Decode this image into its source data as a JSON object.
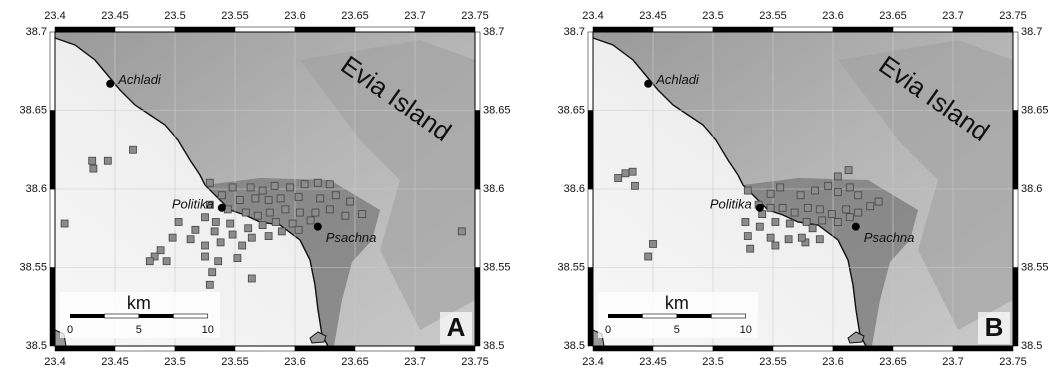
{
  "map": {
    "lonlim": [
      23.4,
      23.75
    ],
    "latlim": [
      38.5,
      38.7
    ],
    "lonticks": [
      23.4,
      23.45,
      23.5,
      23.55,
      23.6,
      23.65,
      23.7,
      23.75
    ],
    "latticks": [
      38.5,
      38.55,
      38.6,
      38.65,
      38.7
    ],
    "island_label": "Evia Island",
    "places": [
      {
        "name": "Achladi",
        "lon": 23.446,
        "lat": 38.667
      },
      {
        "name": "Politika",
        "lon": 23.539,
        "lat": 38.588
      },
      {
        "name": "Psachna",
        "lon": 23.619,
        "lat": 38.576
      }
    ],
    "scale_bar": {
      "unit": "km",
      "ticks": [
        0,
        5,
        10
      ]
    }
  },
  "panels": [
    {
      "label": "A",
      "lon": [
        23.431,
        23.432,
        23.444,
        23.465,
        23.408,
        23.529,
        23.548,
        23.563,
        23.573,
        23.583,
        23.596,
        23.608,
        23.619,
        23.629,
        23.539,
        23.554,
        23.567,
        23.578,
        23.588,
        23.603,
        23.621,
        23.634,
        23.646,
        23.656,
        23.529,
        23.544,
        23.559,
        23.569,
        23.579,
        23.592,
        23.604,
        23.617,
        23.629,
        23.642,
        23.525,
        23.534,
        23.546,
        23.561,
        23.573,
        23.584,
        23.598,
        23.613,
        23.503,
        23.517,
        23.533,
        23.548,
        23.564,
        23.578,
        23.589,
        23.603,
        23.498,
        23.513,
        23.525,
        23.538,
        23.556,
        23.488,
        23.483,
        23.479,
        23.493,
        23.525,
        23.536,
        23.552,
        23.531,
        23.564,
        23.529,
        23.739
      ],
      "lat": [
        38.618,
        38.613,
        38.618,
        38.625,
        38.578,
        38.604,
        38.601,
        38.601,
        38.599,
        38.602,
        38.601,
        38.603,
        38.604,
        38.603,
        38.596,
        38.593,
        38.594,
        38.593,
        38.594,
        38.595,
        38.594,
        38.596,
        38.592,
        38.584,
        38.59,
        38.587,
        38.585,
        38.583,
        38.585,
        38.587,
        38.585,
        38.585,
        38.587,
        38.583,
        38.582,
        38.579,
        38.578,
        38.575,
        38.577,
        38.579,
        38.578,
        38.58,
        38.579,
        38.574,
        38.573,
        38.571,
        38.569,
        38.57,
        38.573,
        38.574,
        38.569,
        38.568,
        38.564,
        38.566,
        38.564,
        38.561,
        38.557,
        38.554,
        38.554,
        38.557,
        38.554,
        38.556,
        38.547,
        38.543,
        38.539,
        38.573
      ]
    },
    {
      "label": "B",
      "lon": [
        23.421,
        23.427,
        23.433,
        23.435,
        23.45,
        23.446,
        23.529,
        23.548,
        23.556,
        23.573,
        23.585,
        23.596,
        23.604,
        23.614,
        23.621,
        23.631,
        23.638,
        23.604,
        23.613,
        23.538,
        23.548,
        23.558,
        23.568,
        23.579,
        23.589,
        23.599,
        23.611,
        23.621,
        23.527,
        23.539,
        23.552,
        23.564,
        23.578,
        23.591,
        23.604,
        23.614,
        23.529,
        23.548,
        23.563,
        23.577,
        23.589,
        23.531,
        23.552,
        23.574,
        23.541,
        23.583
      ],
      "lat": [
        38.607,
        38.61,
        38.611,
        38.602,
        38.565,
        38.557,
        38.599,
        38.597,
        38.601,
        38.596,
        38.599,
        38.602,
        38.598,
        38.601,
        38.596,
        38.589,
        38.592,
        38.608,
        38.612,
        38.59,
        38.588,
        38.588,
        38.585,
        38.588,
        38.587,
        38.584,
        38.587,
        38.585,
        38.579,
        38.576,
        38.579,
        38.578,
        38.579,
        38.58,
        38.579,
        38.582,
        38.57,
        38.569,
        38.568,
        38.566,
        38.568,
        38.562,
        38.564,
        38.569,
        38.584,
        38.575
      ]
    }
  ]
}
